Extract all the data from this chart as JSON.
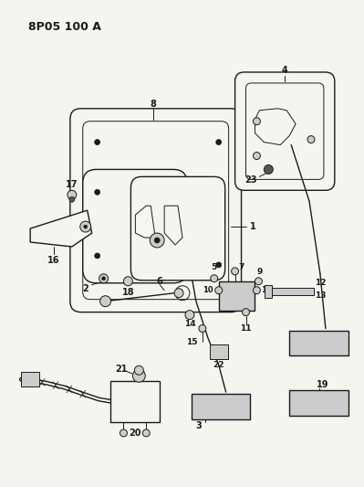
{
  "title": "8P05 100 A",
  "bg_color": "#f5f5f0",
  "line_color": "#1a1a1a",
  "figsize": [
    3.99,
    5.33
  ],
  "dpi": 100,
  "title_fontsize": 9,
  "component_color": "#e8e8e8",
  "dark_gray": "#555555",
  "mid_gray": "#888888",
  "light_gray": "#cccccc"
}
